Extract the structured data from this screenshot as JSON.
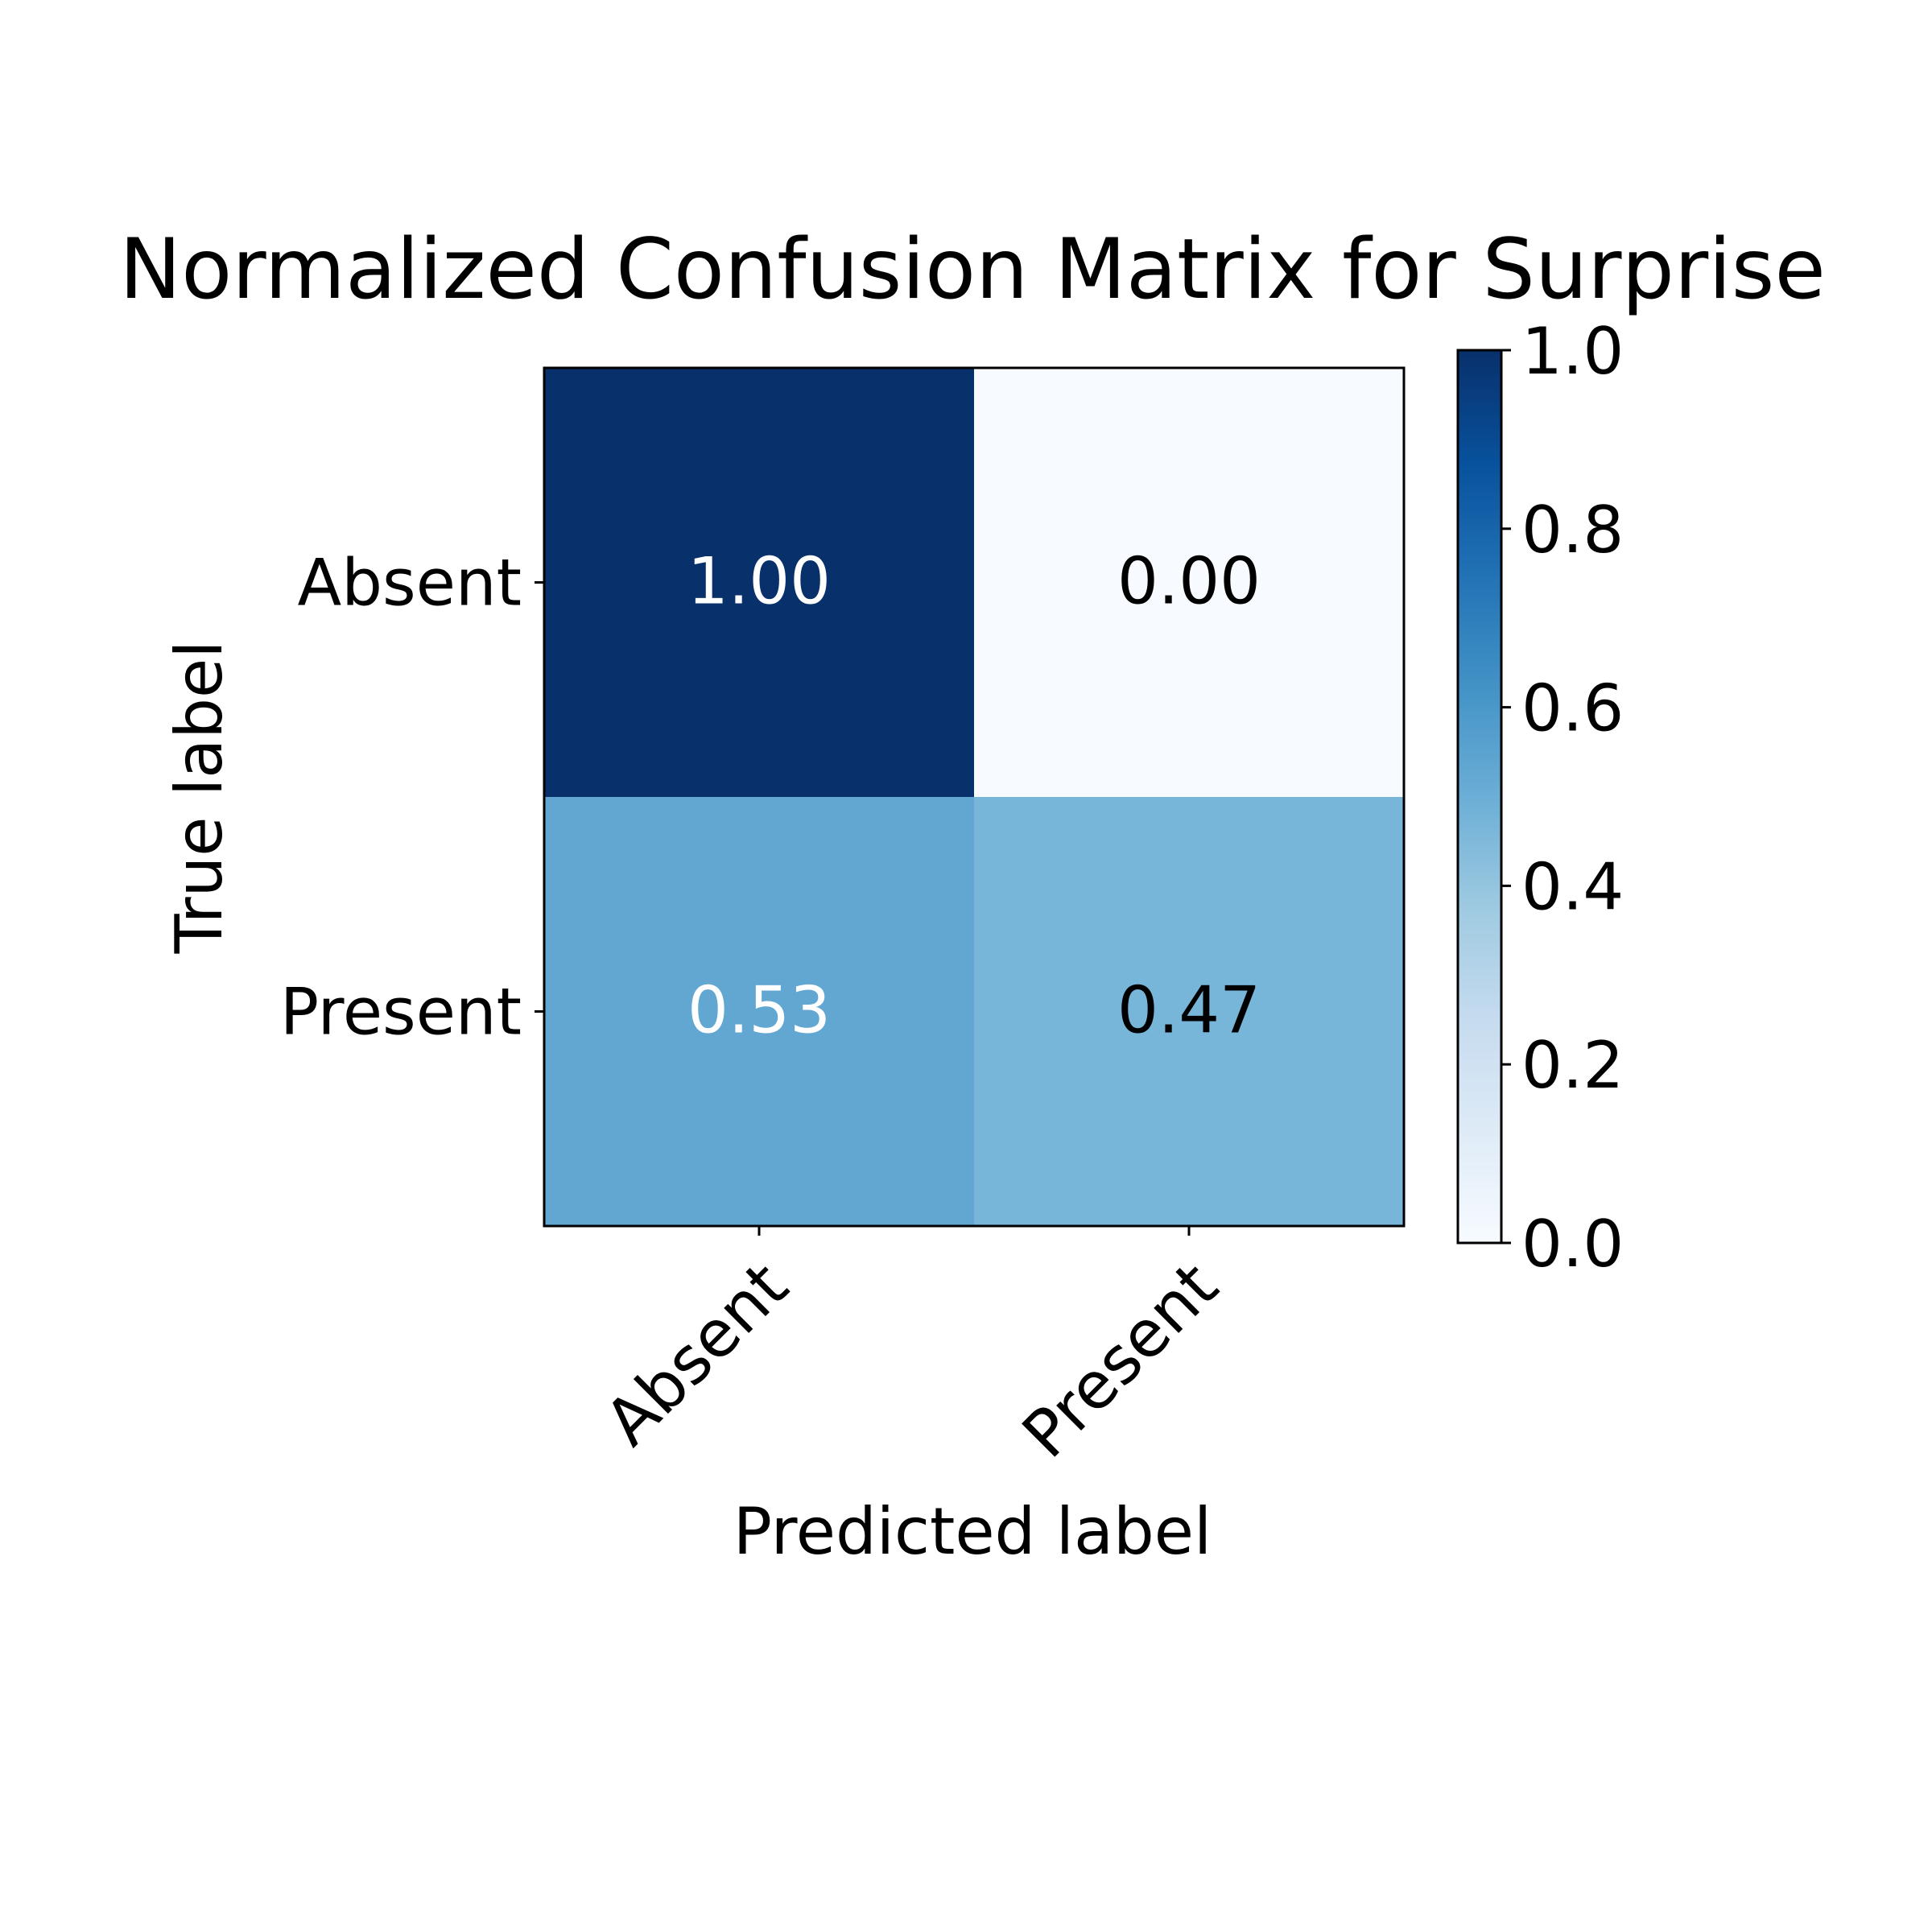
{
  "chart_data": {
    "type": "heatmap",
    "title": "Normalized Confusion Matrix for Surprise",
    "xlabel": "Predicted label",
    "ylabel": "True label",
    "row_labels": [
      "Absent",
      "Present"
    ],
    "col_labels": [
      "Absent",
      "Present"
    ],
    "values": [
      [
        1.0,
        0.0
      ],
      [
        0.53,
        0.47
      ]
    ],
    "cell_labels": [
      [
        "1.00",
        "0.00"
      ],
      [
        "0.53",
        "0.47"
      ]
    ],
    "colorbar": {
      "range": [
        0.0,
        1.0
      ],
      "ticks": [
        0.0,
        0.2,
        0.4,
        0.6,
        0.8,
        1.0
      ],
      "tick_labels": [
        "0.0",
        "0.2",
        "0.4",
        "0.6",
        "0.8",
        "1.0"
      ]
    },
    "colormap": "Blues",
    "x_tick_rotation": 45
  }
}
